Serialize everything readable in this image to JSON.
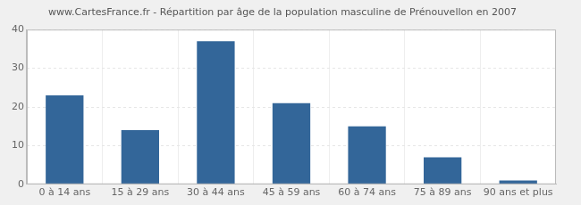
{
  "chart_data": {
    "type": "bar",
    "title": "www.CartesFrance.fr - Répartition par âge de la population masculine de Prénouvellon en 2007",
    "categories": [
      "0 à 14 ans",
      "15 à 29 ans",
      "30 à 44 ans",
      "45 à 59 ans",
      "60 à 74 ans",
      "75 à 89 ans",
      "90 ans et plus"
    ],
    "values": [
      23,
      14,
      37,
      21,
      15,
      7,
      1
    ],
    "color": "#336699",
    "ylim": [
      0,
      40
    ],
    "yticks": [
      0,
      10,
      20,
      30,
      40
    ],
    "grid": true
  }
}
